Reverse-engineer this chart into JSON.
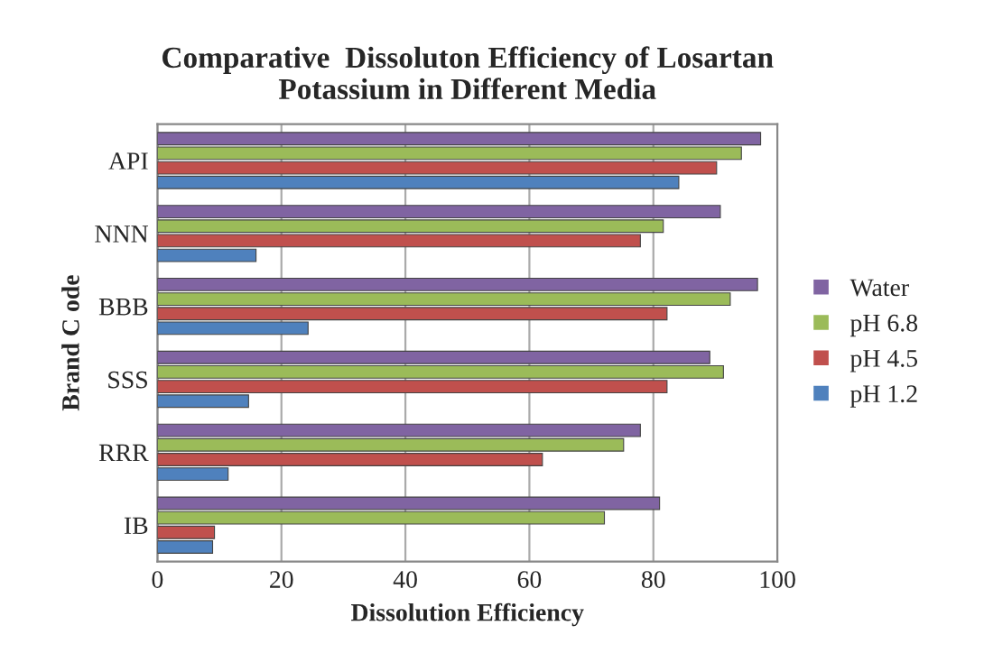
{
  "chart_data": {
    "type": "bar",
    "orientation": "horizontal",
    "title": "Comparative  Dissoluton Efficiency of Losartan\nPotassium in Different Media",
    "xlabel": "Dissolution Efficiency",
    "ylabel": "Brand C ode",
    "categories": [
      "API",
      "NNN",
      "BBB",
      "SSS",
      "RRR",
      "IB"
    ],
    "series": [
      {
        "name": "Water",
        "color": "#8064a2",
        "values": [
          97.3,
          90.8,
          96.8,
          89.1,
          77.9,
          81
        ]
      },
      {
        "name": "pH 6.8",
        "color": "#9bbb59",
        "values": [
          94.2,
          81.6,
          92.4,
          91.3,
          75.2,
          72.1
        ]
      },
      {
        "name": "pH 4.5",
        "color": "#c0504d",
        "values": [
          90.2,
          77.9,
          82.2,
          82.2,
          62.1,
          9.2
        ]
      },
      {
        "name": "pH 1.2",
        "color": "#4f81bd",
        "values": [
          84.1,
          15.9,
          24.3,
          14.7,
          11.4,
          8.9
        ]
      }
    ],
    "xlim": [
      0,
      100
    ],
    "xticks": [
      0,
      20,
      40,
      60,
      80,
      100
    ],
    "grid": "x",
    "legend": "right"
  }
}
